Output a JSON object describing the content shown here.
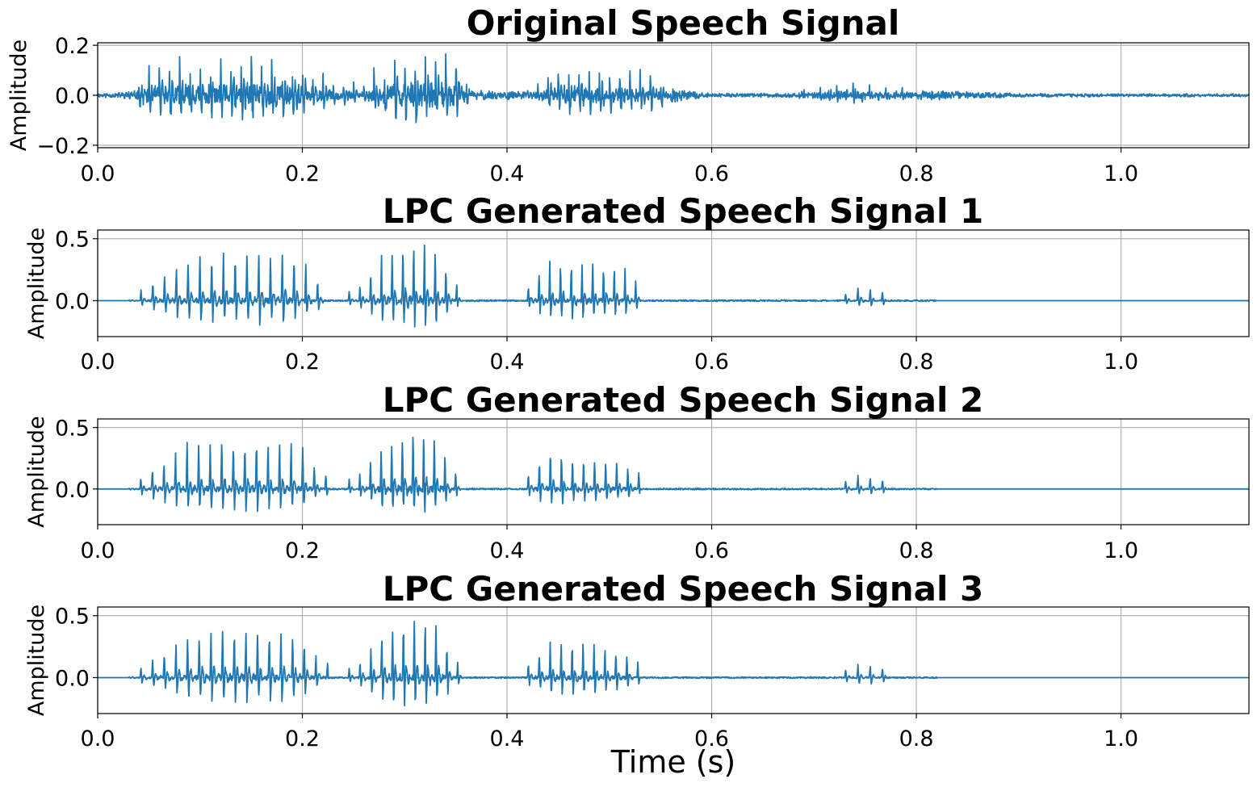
{
  "chart_data": [
    {
      "type": "line",
      "title": "Original Speech Signal",
      "xlabel": "",
      "ylabel": "Amplitude",
      "xlim": [
        0.0,
        1.125
      ],
      "ylim": [
        -0.21,
        0.21
      ],
      "xticks": [
        "0.0",
        "0.2",
        "0.4",
        "0.6",
        "0.8",
        "1.0"
      ],
      "xtick_values": [
        0.0,
        0.2,
        0.4,
        0.6,
        0.8,
        1.0
      ],
      "yticks": [
        "0.2",
        "0.0",
        "−0.2"
      ],
      "ytick_values": [
        0.2,
        0.0,
        -0.2
      ],
      "grid": true,
      "color": "#1f77b4",
      "envelope": {
        "t": [
          0.0,
          0.03,
          0.05,
          0.08,
          0.12,
          0.16,
          0.2,
          0.23,
          0.26,
          0.28,
          0.3,
          0.32,
          0.35,
          0.37,
          0.42,
          0.45,
          0.5,
          0.55,
          0.58,
          0.6,
          0.68,
          0.7,
          0.74,
          0.76,
          0.8,
          0.85,
          0.9,
          0.95,
          1.125
        ],
        "amp": [
          0.01,
          0.02,
          0.12,
          0.15,
          0.16,
          0.16,
          0.15,
          0.07,
          0.04,
          0.16,
          0.19,
          0.18,
          0.16,
          0.03,
          0.02,
          0.12,
          0.11,
          0.08,
          0.02,
          0.01,
          0.01,
          0.04,
          0.05,
          0.04,
          0.03,
          0.02,
          0.01,
          0.008,
          0.006
        ]
      },
      "pulse_regions": [
        [
          0.03,
          0.37,
          0.01
        ],
        [
          0.42,
          0.56,
          0.01
        ],
        [
          0.69,
          0.8,
          0.008
        ]
      ],
      "seed": 11,
      "noise": 0.006
    },
    {
      "type": "line",
      "title": "LPC Generated Speech Signal 1",
      "xlabel": "",
      "ylabel": "Amplitude",
      "xlim": [
        0.0,
        1.125
      ],
      "ylim": [
        -0.29,
        0.57
      ],
      "xticks": [
        "0.0",
        "0.2",
        "0.4",
        "0.6",
        "0.8",
        "1.0"
      ],
      "xtick_values": [
        0.0,
        0.2,
        0.4,
        0.6,
        0.8,
        1.0
      ],
      "yticks": [
        "0.5",
        "0.0"
      ],
      "ytick_values": [
        0.5,
        0.0
      ],
      "grid": true,
      "color": "#1f77b4",
      "peaks": {
        "t": [
          0.03,
          0.05,
          0.06,
          0.09,
          0.13,
          0.18,
          0.2,
          0.21,
          0.22,
          0.25,
          0.28,
          0.3,
          0.31,
          0.33,
          0.35,
          0.36,
          0.42,
          0.44,
          0.47,
          0.51,
          0.53,
          0.55,
          0.73,
          0.745,
          0.77,
          0.8
        ],
        "amp": [
          0.0,
          0.15,
          0.2,
          0.38,
          0.41,
          0.41,
          0.38,
          0.2,
          0.15,
          0.08,
          0.4,
          0.5,
          0.52,
          0.48,
          0.16,
          0.0,
          0.12,
          0.34,
          0.34,
          0.3,
          0.15,
          0.0,
          0.06,
          0.12,
          0.08,
          0.0
        ]
      },
      "regions": [
        [
          0.03,
          0.225,
          0.0115
        ],
        [
          0.245,
          0.36,
          0.0105
        ],
        [
          0.42,
          0.53,
          0.0105
        ],
        [
          0.73,
          0.77,
          0.012
        ]
      ],
      "seed": 21,
      "neg_ratio": 0.45
    },
    {
      "type": "line",
      "title": "LPC Generated Speech Signal 2",
      "xlabel": "",
      "ylabel": "Amplitude",
      "xlim": [
        0.0,
        1.125
      ],
      "ylim": [
        -0.29,
        0.57
      ],
      "xticks": [
        "0.0",
        "0.2",
        "0.4",
        "0.6",
        "0.8",
        "1.0"
      ],
      "xtick_values": [
        0.0,
        0.2,
        0.4,
        0.6,
        0.8,
        1.0
      ],
      "yticks": [
        "0.5",
        "0.0"
      ],
      "ytick_values": [
        0.5,
        0.0
      ],
      "grid": true,
      "color": "#1f77b4",
      "peaks": {
        "t": [
          0.03,
          0.05,
          0.06,
          0.09,
          0.13,
          0.18,
          0.2,
          0.21,
          0.22,
          0.25,
          0.28,
          0.3,
          0.31,
          0.33,
          0.35,
          0.36,
          0.42,
          0.44,
          0.47,
          0.51,
          0.53,
          0.55,
          0.73,
          0.745,
          0.77,
          0.8
        ],
        "amp": [
          0.0,
          0.17,
          0.22,
          0.4,
          0.43,
          0.42,
          0.39,
          0.22,
          0.15,
          0.08,
          0.42,
          0.5,
          0.53,
          0.49,
          0.17,
          0.0,
          0.12,
          0.36,
          0.3,
          0.25,
          0.16,
          0.0,
          0.07,
          0.12,
          0.08,
          0.0
        ]
      },
      "regions": [
        [
          0.03,
          0.225,
          0.0113
        ],
        [
          0.245,
          0.36,
          0.0104
        ],
        [
          0.42,
          0.53,
          0.0108
        ],
        [
          0.73,
          0.77,
          0.012
        ]
      ],
      "seed": 37,
      "neg_ratio": 0.42
    },
    {
      "type": "line",
      "title": "LPC Generated Speech Signal 3",
      "xlabel": "Time (s)",
      "ylabel": "Amplitude",
      "xlim": [
        0.0,
        1.125
      ],
      "ylim": [
        -0.29,
        0.57
      ],
      "xticks": [
        "0.0",
        "0.2",
        "0.4",
        "0.6",
        "0.8",
        "1.0"
      ],
      "xtick_values": [
        0.0,
        0.2,
        0.4,
        0.6,
        0.8,
        1.0
      ],
      "yticks": [
        "0.5",
        "0.0"
      ],
      "ytick_values": [
        0.5,
        0.0
      ],
      "grid": true,
      "color": "#1f77b4",
      "peaks": {
        "t": [
          0.03,
          0.05,
          0.06,
          0.09,
          0.13,
          0.18,
          0.2,
          0.21,
          0.22,
          0.25,
          0.28,
          0.3,
          0.31,
          0.33,
          0.35,
          0.36,
          0.42,
          0.44,
          0.47,
          0.51,
          0.53,
          0.55,
          0.73,
          0.745,
          0.77,
          0.8
        ],
        "amp": [
          0.0,
          0.15,
          0.2,
          0.37,
          0.43,
          0.41,
          0.38,
          0.2,
          0.15,
          0.08,
          0.42,
          0.5,
          0.54,
          0.5,
          0.17,
          0.0,
          0.12,
          0.3,
          0.32,
          0.24,
          0.12,
          0.0,
          0.07,
          0.12,
          0.08,
          0.0
        ]
      },
      "regions": [
        [
          0.03,
          0.225,
          0.0114
        ],
        [
          0.245,
          0.36,
          0.0106
        ],
        [
          0.42,
          0.53,
          0.0107
        ],
        [
          0.73,
          0.77,
          0.012
        ]
      ],
      "seed": 53,
      "neg_ratio": 0.47
    }
  ]
}
